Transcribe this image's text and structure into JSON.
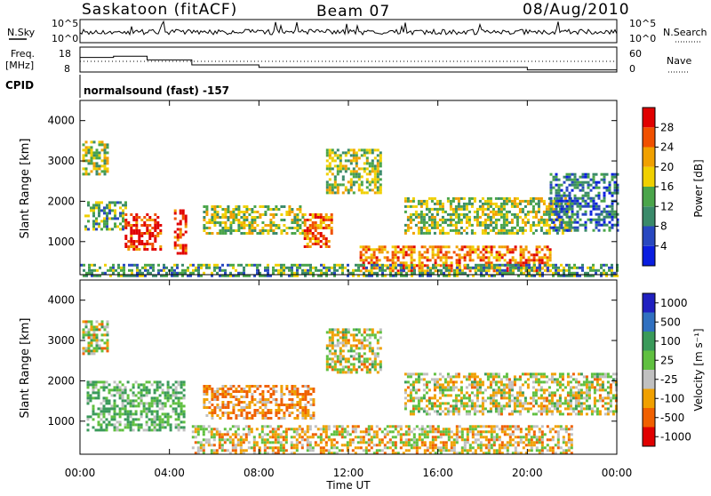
{
  "header": {
    "station": "Saskatoon (fitACF)",
    "beam": "Beam 07",
    "date": "08/Aug/2010"
  },
  "noise_panel": {
    "left_label": "N.Sky",
    "right_label": "N.Search",
    "y_ticks": [
      "10^5",
      "10^0"
    ]
  },
  "freq_panel": {
    "left_label_1": "Freq.",
    "left_label_2": "[MHz]",
    "left_ticks": [
      "18",
      "8"
    ],
    "right_ticks": [
      "60",
      "0"
    ],
    "right_label": "Nave"
  },
  "cpid_panel": {
    "label": "CPID",
    "mode": "normalsound (fast) -157"
  },
  "power_panel": {
    "ylabel": "Slant Range [km]",
    "y_ticks": [
      "4000",
      "3000",
      "2000",
      "1000"
    ],
    "colorbar_label": "Power [dB]",
    "colorbar_ticks": [
      "28",
      "24",
      "20",
      "16",
      "12",
      "8",
      "4"
    ],
    "colors": [
      "#0a1ee0",
      "#2848c0",
      "#3a8a6a",
      "#4aa54a",
      "#f0d000",
      "#f0a000",
      "#f05000",
      "#e00000"
    ]
  },
  "velocity_panel": {
    "ylabel": "Slant Range [km]",
    "y_ticks": [
      "4000",
      "3000",
      "2000",
      "1000"
    ],
    "colorbar_label": "Velocity [m s⁻¹]",
    "colorbar_ticks": [
      "1000",
      "500",
      "100",
      "25",
      "-25",
      "-100",
      "-500",
      "-1000"
    ],
    "colors": [
      "#2020c0",
      "#3070c0",
      "#3a9a5a",
      "#60c040",
      "#c0c0c0",
      "#f0a000",
      "#f06000",
      "#e00000"
    ]
  },
  "x_axis": {
    "ticks": [
      "00:00",
      "04:00",
      "08:00",
      "12:00",
      "16:00",
      "20:00",
      "00:00"
    ],
    "label": "Time UT"
  },
  "chart_data": {
    "type": "heatmap",
    "x_range_hours": [
      0,
      24
    ],
    "y_range_km": [
      180,
      4500
    ],
    "power_regions": [
      {
        "t": [
          0.1,
          1.2
        ],
        "r": [
          2700,
          3500
        ],
        "power_db": 16
      },
      {
        "t": [
          0.2,
          2.0
        ],
        "r": [
          1300,
          2000
        ],
        "power_db": 12
      },
      {
        "t": [
          2.0,
          3.6
        ],
        "r": [
          800,
          1700
        ],
        "power_db": 28
      },
      {
        "t": [
          4.2,
          4.7
        ],
        "r": [
          700,
          1800
        ],
        "power_db": 28
      },
      {
        "t": [
          5.5,
          10.0
        ],
        "r": [
          1200,
          1900
        ],
        "power_db": 16
      },
      {
        "t": [
          10.0,
          11.2
        ],
        "r": [
          900,
          1700
        ],
        "power_db": 24
      },
      {
        "t": [
          11.0,
          13.5
        ],
        "r": [
          2200,
          3300
        ],
        "power_db": 16
      },
      {
        "t": [
          12.5,
          21.0
        ],
        "r": [
          300,
          900
        ],
        "power_db": 24
      },
      {
        "t": [
          14.5,
          22.0
        ],
        "r": [
          1200,
          2100
        ],
        "power_db": 16
      },
      {
        "t": [
          21.0,
          24.0
        ],
        "r": [
          1300,
          2700
        ],
        "power_db": 8
      },
      {
        "t": [
          0.0,
          24.0
        ],
        "r": [
          180,
          450
        ],
        "power_db": 12
      }
    ],
    "velocity_regions": [
      {
        "t": [
          0.1,
          1.2
        ],
        "r": [
          2700,
          3500
        ],
        "velocity_ms": 0
      },
      {
        "t": [
          0.3,
          4.6
        ],
        "r": [
          800,
          2000
        ],
        "velocity_ms": 100
      },
      {
        "t": [
          5.5,
          10.5
        ],
        "r": [
          1100,
          1900
        ],
        "velocity_ms": -100
      },
      {
        "t": [
          11.0,
          13.5
        ],
        "r": [
          2200,
          3300
        ],
        "velocity_ms": 0
      },
      {
        "t": [
          5.0,
          22.0
        ],
        "r": [
          180,
          900
        ],
        "velocity_ms": -25
      },
      {
        "t": [
          14.5,
          24.0
        ],
        "r": [
          1200,
          2200
        ],
        "velocity_ms": 0
      }
    ],
    "frequency_mhz_steps": [
      [
        0,
        16
      ],
      [
        1.5,
        16.5
      ],
      [
        3,
        15
      ],
      [
        5,
        13
      ],
      [
        8,
        12
      ],
      [
        16,
        12
      ],
      [
        20,
        11
      ],
      [
        24,
        11
      ]
    ],
    "nave_dotted": 14
  }
}
